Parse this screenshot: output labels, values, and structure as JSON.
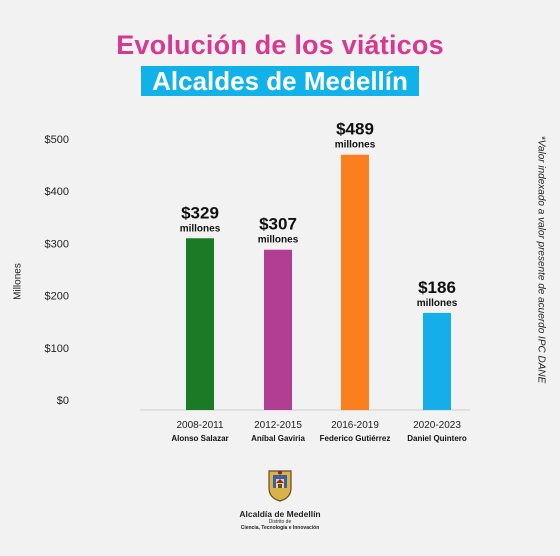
{
  "header": {
    "title": "Evolución de los viáticos",
    "subtitle": "Alcaldes de Medellín"
  },
  "side_note": "*Valor indexado a valor presente de acuerdo IPC DANE",
  "logo": {
    "name": "Alcaldía de Medellín",
    "line1": "Distrito de",
    "line2": "Ciencia, Tecnología e Innovación"
  },
  "chart_data": {
    "type": "bar",
    "title": "Evolución de los viáticos",
    "subtitle": "Alcaldes de Medellín",
    "ylabel": "Millones",
    "xlabel": "",
    "ylim": [
      0,
      500
    ],
    "yticks": [
      0,
      100,
      200,
      300,
      400,
      500
    ],
    "ytick_labels": [
      "$0",
      "$100",
      "$200",
      "$300",
      "$400",
      "$500"
    ],
    "categories": [
      "2008-2011",
      "2012-2015",
      "2016-2019",
      "2020-2023"
    ],
    "mayors": [
      "Alonso Salazar",
      "Aníbal Gaviria",
      "Federico Gutiérrez",
      "Daniel Quintero"
    ],
    "values": [
      329,
      307,
      489,
      186
    ],
    "value_labels": [
      "$329",
      "$307",
      "$489",
      "$186"
    ],
    "unit_label": "millones",
    "bar_colors": [
      "#1b7a26",
      "#b13e93",
      "#fb7f1e",
      "#15aeea"
    ],
    "grid": false,
    "legend": "none"
  }
}
